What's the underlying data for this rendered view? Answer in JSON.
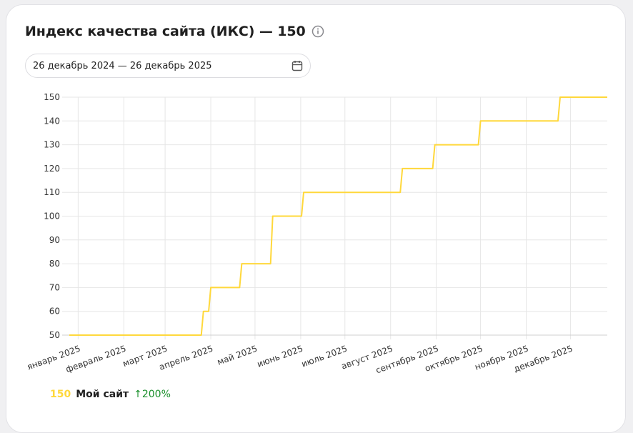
{
  "header": {
    "title": "Индекс качества сайта (ИКС) — 150",
    "info_icon": "info-icon"
  },
  "date_filter": {
    "value": "26 декабрь 2024 — 26 декабрь 2025",
    "icon": "calendar-icon"
  },
  "chart_data": {
    "type": "line",
    "step": true,
    "xlabel": "",
    "ylabel": "",
    "ylim": [
      50,
      150
    ],
    "yticks": [
      50,
      60,
      70,
      80,
      90,
      100,
      110,
      120,
      130,
      140,
      150
    ],
    "xlim": [
      "2024-12-26",
      "2025-12-26"
    ],
    "xticks": [
      {
        "date": "2025-01-01",
        "label": "январь 2025"
      },
      {
        "date": "2025-02-01",
        "label": "февраль 2025"
      },
      {
        "date": "2025-03-01",
        "label": "март 2025"
      },
      {
        "date": "2025-04-01",
        "label": "апрель 2025"
      },
      {
        "date": "2025-05-01",
        "label": "май 2025"
      },
      {
        "date": "2025-06-01",
        "label": "июнь 2025"
      },
      {
        "date": "2025-07-01",
        "label": "июль 2025"
      },
      {
        "date": "2025-08-01",
        "label": "август 2025"
      },
      {
        "date": "2025-09-01",
        "label": "сентябрь 2025"
      },
      {
        "date": "2025-10-01",
        "label": "октябрь 2025"
      },
      {
        "date": "2025-11-01",
        "label": "ноябрь 2025"
      },
      {
        "date": "2025-12-01",
        "label": "декабрь 2025"
      }
    ],
    "grid": true,
    "series": [
      {
        "name": "Мой сайт",
        "color": "#ffd83b",
        "points": [
          {
            "x": "2024-12-26",
            "y": 50
          },
          {
            "x": "2025-03-27",
            "y": 60
          },
          {
            "x": "2025-04-01",
            "y": 70
          },
          {
            "x": "2025-04-22",
            "y": 80
          },
          {
            "x": "2025-05-13",
            "y": 100
          },
          {
            "x": "2025-06-03",
            "y": 110
          },
          {
            "x": "2025-08-09",
            "y": 120
          },
          {
            "x": "2025-08-31",
            "y": 130
          },
          {
            "x": "2025-10-01",
            "y": 140
          },
          {
            "x": "2025-11-24",
            "y": 150
          },
          {
            "x": "2025-12-26",
            "y": 150
          }
        ]
      }
    ]
  },
  "legend": {
    "value": "150",
    "name": "Мой сайт",
    "change": "↑200%",
    "change_color": "#1a8f2b"
  }
}
